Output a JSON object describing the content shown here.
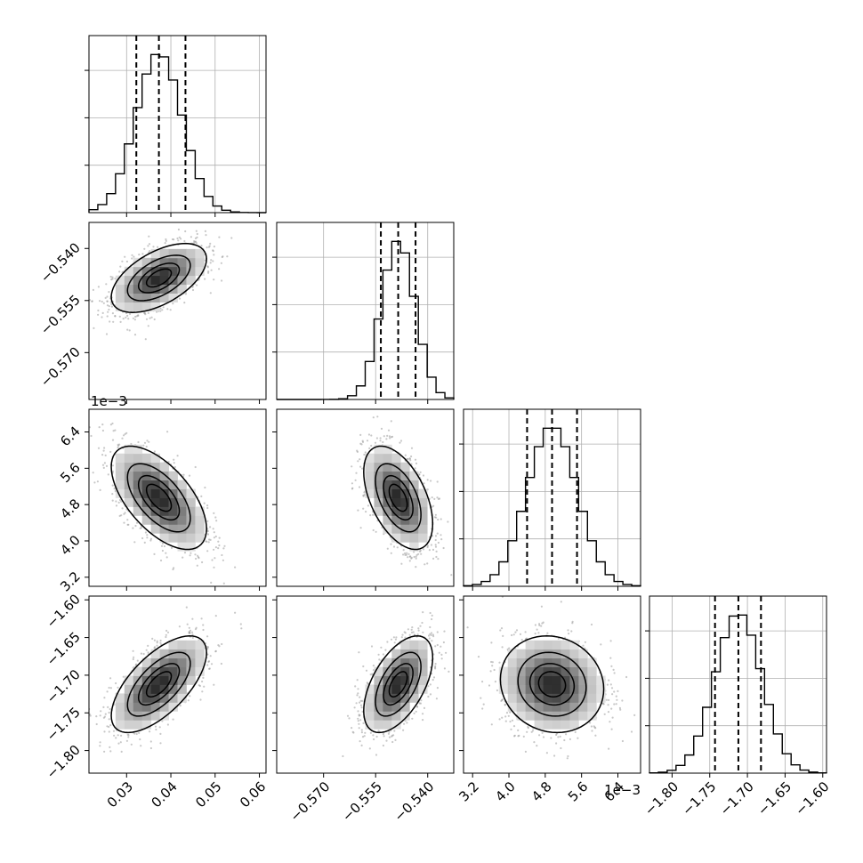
{
  "chart_data": {
    "type": "corner",
    "parameters": [
      {
        "range": [
          0.0215,
          0.0615
        ],
        "ticks": [
          0.03,
          0.04,
          0.05,
          0.06
        ],
        "tick_labels": [
          "0.03",
          "0.04",
          "0.05",
          "0.06"
        ],
        "offset": "",
        "mean": 0.0373,
        "sd": 0.0052,
        "quantiles": [
          0.0322,
          0.0373,
          0.0433
        ]
      },
      {
        "range": [
          -0.5835,
          -0.5325
        ],
        "ticks": [
          -0.57,
          -0.555,
          -0.54
        ],
        "tick_labels": [
          "−0.570",
          "−0.555",
          "−0.540"
        ],
        "offset": "",
        "mean": -0.5485,
        "sd": 0.0048,
        "quantiles": [
          -0.5535,
          -0.5485,
          -0.5435
        ]
      },
      {
        "range": [
          3.0,
          6.9
        ],
        "ticks": [
          3.2,
          4.0,
          4.8,
          5.6,
          6.4
        ],
        "tick_labels": [
          "3.2",
          "4.0",
          "4.8",
          "5.6",
          "6.4"
        ],
        "offset": "1e−3",
        "mean": 4.95,
        "sd": 0.55,
        "quantiles": [
          4.4,
          4.95,
          5.5
        ]
      },
      {
        "range": [
          -1.83,
          -1.595
        ],
        "ticks": [
          -1.8,
          -1.75,
          -1.7,
          -1.65,
          -1.6
        ],
        "tick_labels": [
          "−1.80",
          "−1.75",
          "−1.70",
          "−1.65",
          "−1.60"
        ],
        "offset": "",
        "mean": -1.712,
        "sd": 0.031,
        "quantiles": [
          -1.743,
          -1.712,
          -1.682
        ]
      }
    ],
    "correlations": [
      [
        1.0,
        0.55,
        -0.6,
        0.65
      ],
      [
        0.55,
        1.0,
        -0.5,
        0.55
      ],
      [
        -0.6,
        -0.5,
        1.0,
        -0.1
      ],
      [
        0.65,
        0.55,
        -0.1,
        1.0
      ]
    ],
    "histogram_bins": 20,
    "quantile_levels": [
      0.16,
      0.5,
      0.84
    ],
    "contour_sigma_levels": [
      0.5,
      1.0,
      1.5,
      2.0
    ],
    "grid": true,
    "colors": {
      "line": "#000000",
      "points": "#9a9a9a",
      "grid": "#b0b0b0",
      "density": "#000000"
    }
  }
}
